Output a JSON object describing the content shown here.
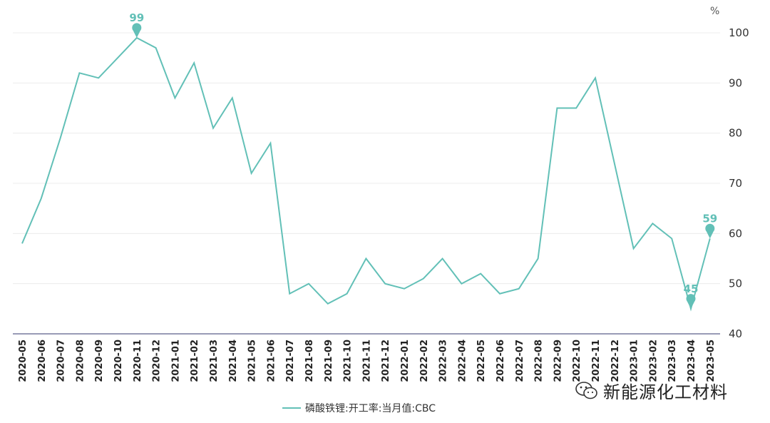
{
  "chart_data": {
    "type": "line",
    "unit": "%",
    "ylim": [
      40,
      100
    ],
    "yticks": [
      40,
      50,
      60,
      70,
      80,
      90,
      100
    ],
    "grid": true,
    "legend_position": "bottom-center",
    "categories": [
      "2020-05",
      "2020-06",
      "2020-07",
      "2020-08",
      "2020-09",
      "2020-10",
      "2020-11",
      "2020-12",
      "2021-01",
      "2021-02",
      "2021-03",
      "2021-04",
      "2021-05",
      "2021-06",
      "2021-07",
      "2021-08",
      "2021-09",
      "2021-10",
      "2021-11",
      "2021-12",
      "2022-01",
      "2022-02",
      "2022-03",
      "2022-04",
      "2022-05",
      "2022-06",
      "2022-07",
      "2022-08",
      "2022-09",
      "2022-10",
      "2022-11",
      "2022-12",
      "2023-01",
      "2023-02",
      "2023-03",
      "2023-04",
      "2023-05"
    ],
    "series": [
      {
        "name": "磷酸铁锂:开工率:当月值:CBC",
        "color": "#62c0b7",
        "values": [
          58,
          67,
          79,
          92,
          91,
          95,
          99,
          97,
          87,
          94,
          81,
          87,
          72,
          78,
          48,
          50,
          46,
          48,
          55,
          50,
          49,
          51,
          55,
          50,
          52,
          48,
          49,
          55,
          85,
          85,
          91,
          74,
          57,
          62,
          59,
          45,
          59
        ]
      }
    ],
    "annotations": [
      {
        "category": "2020-11",
        "value": 99,
        "label": "99"
      },
      {
        "category": "2023-04",
        "value": 45,
        "label": "45"
      },
      {
        "category": "2023-05",
        "value": 59,
        "label": "59"
      }
    ]
  },
  "watermark": "新能源化工材料"
}
